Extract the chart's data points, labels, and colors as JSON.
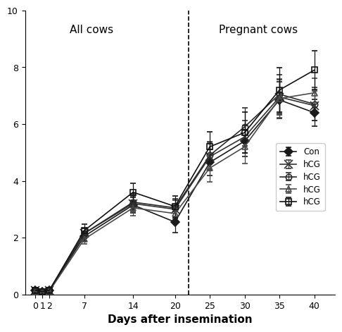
{
  "x_ticks": [
    0,
    1,
    2,
    7,
    14,
    20,
    25,
    30,
    35,
    40
  ],
  "series": [
    {
      "label": "Con",
      "marker": "D",
      "fillstyle": "full",
      "color": "#1a1a1a",
      "markersize": 6,
      "y": [
        0.15,
        0.1,
        0.15,
        2.05,
        3.15,
        2.55,
        4.65,
        5.4,
        6.85,
        6.4
      ],
      "yerr": [
        0.08,
        0.05,
        0.08,
        0.18,
        0.28,
        0.38,
        0.45,
        0.55,
        0.65,
        0.48
      ]
    },
    {
      "label": "hCG",
      "marker": "x",
      "fillstyle": "full",
      "color": "#333333",
      "markersize": 8,
      "y": [
        0.15,
        0.1,
        0.15,
        2.15,
        3.2,
        3.0,
        4.85,
        5.55,
        6.95,
        6.65
      ],
      "yerr": [
        0.08,
        0.05,
        0.08,
        0.18,
        0.28,
        0.32,
        0.48,
        0.58,
        0.62,
        0.52
      ]
    },
    {
      "label": "hCG",
      "marker": "o",
      "fillstyle": "none",
      "color": "#2a2a2a",
      "markersize": 6,
      "y": [
        0.15,
        0.1,
        0.15,
        2.15,
        3.25,
        3.05,
        4.9,
        5.9,
        7.05,
        6.7
      ],
      "yerr": [
        0.08,
        0.05,
        0.08,
        0.18,
        0.28,
        0.32,
        0.48,
        0.68,
        0.68,
        0.58
      ]
    },
    {
      "label": "hCG",
      "marker": "^",
      "fillstyle": "none",
      "color": "#4a4a4a",
      "markersize": 6,
      "y": [
        0.1,
        0.08,
        0.12,
        1.95,
        3.05,
        2.85,
        4.45,
        5.2,
        6.9,
        7.1
      ],
      "yerr": [
        0.08,
        0.05,
        0.08,
        0.18,
        0.28,
        0.32,
        0.48,
        0.58,
        0.68,
        0.52
      ]
    },
    {
      "label": "hCG",
      "marker": "s",
      "fillstyle": "none",
      "color": "#111111",
      "markersize": 6,
      "y": [
        0.15,
        0.1,
        0.15,
        2.25,
        3.6,
        3.1,
        5.2,
        5.7,
        7.2,
        7.9
      ],
      "yerr": [
        0.08,
        0.05,
        0.08,
        0.22,
        0.32,
        0.38,
        0.52,
        0.72,
        0.78,
        0.68
      ]
    }
  ],
  "vline_x": 22,
  "xlabel": "Days after insemination",
  "ylim": [
    0,
    10
  ],
  "yticks": [
    0,
    2,
    4,
    6,
    8,
    10
  ],
  "xlim": [
    -1.5,
    43
  ],
  "all_cows_label": "All cows",
  "pregnant_cows_label": "Pregnant cows",
  "all_cows_x": 8,
  "all_cows_y": 9.5,
  "pregnant_cows_x": 32,
  "pregnant_cows_y": 9.5,
  "linewidth": 1.2
}
